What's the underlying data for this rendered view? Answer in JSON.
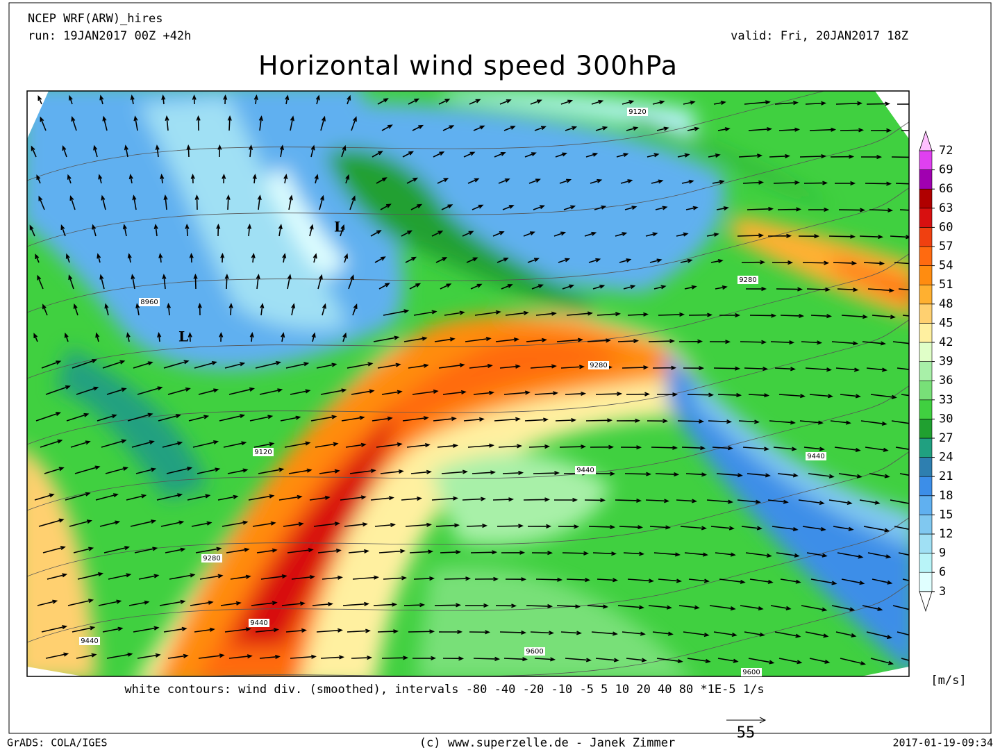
{
  "header": {
    "model": "NCEP WRF(ARW)_hires",
    "run": "run: 19JAN2017 00Z +42h",
    "valid": "valid: Fri, 20JAN2017 18Z",
    "title": "Horizontal wind speed 300hPa"
  },
  "map": {
    "contour_labels": [
      "9120",
      "8960",
      "9280",
      "9280",
      "9120",
      "9440",
      "9440",
      "9280",
      "9440",
      "9440",
      "9600",
      "9600"
    ],
    "lows": [
      "L",
      "L"
    ]
  },
  "colorbar": {
    "levels": [
      3,
      6,
      9,
      12,
      15,
      18,
      21,
      24,
      27,
      30,
      33,
      36,
      39,
      42,
      45,
      48,
      51,
      54,
      57,
      60,
      63,
      66,
      69,
      72
    ],
    "colors": [
      "#ffffff",
      "#e0ffff",
      "#b8f4f8",
      "#a0e0f4",
      "#80c8f0",
      "#60b0f0",
      "#3c8ee8",
      "#2e7fb0",
      "#20a080",
      "#20a030",
      "#40d040",
      "#78e078",
      "#a8f0a8",
      "#e0ffc8",
      "#fff0a0",
      "#ffd070",
      "#ffb030",
      "#ff8c10",
      "#ff6a10",
      "#f04010",
      "#d81010",
      "#b00000",
      "#a000b0",
      "#e040f0",
      "#ffc0ff"
    ],
    "unit": "[m/s]"
  },
  "caption": "white contours: wind div. (smoothed), intervals -80 -40 -20 -10 -5 5 10 20 40 80 *1E-5 1/s",
  "vector_reference": "55",
  "footer": {
    "left": "GrADS: COLA/IGES",
    "center": "(c) www.superzelle.de - Janek Zimmer",
    "right": "2017-01-19-09:34"
  }
}
